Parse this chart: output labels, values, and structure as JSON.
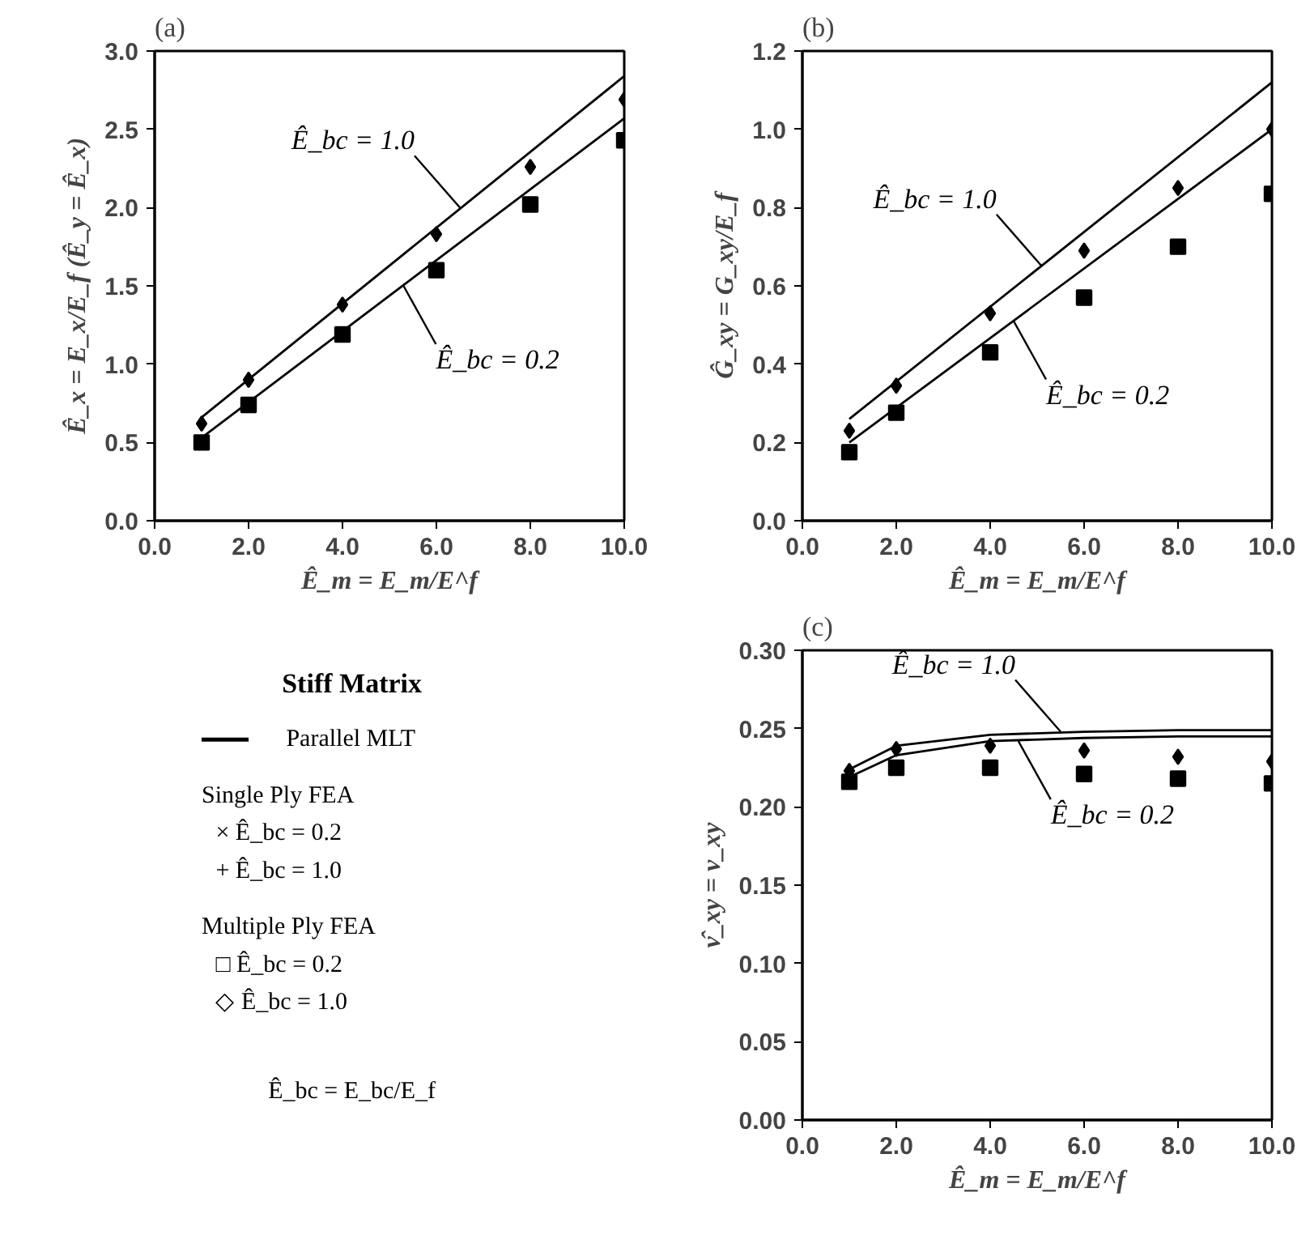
{
  "chart_data": [
    {
      "type": "scatter",
      "title": "(a)",
      "xlabel": "Ê_m = E_m/E^f",
      "ylabel": "Ê_x = E_x/E_f (Ê_y = Ê_x)",
      "x": [
        1,
        2,
        4,
        6,
        8,
        10
      ],
      "xlim": [
        0,
        10
      ],
      "ylim": [
        0,
        3
      ],
      "xticks": [
        {
          "value": 0,
          "label": "0.0"
        },
        {
          "value": 2,
          "label": "2.0"
        },
        {
          "value": 4,
          "label": "4.0"
        },
        {
          "value": 6,
          "label": "6.0"
        },
        {
          "value": 8,
          "label": "8.0"
        },
        {
          "value": 10,
          "label": "10.0"
        }
      ],
      "yticks": [
        {
          "value": 0,
          "label": "0.0"
        },
        {
          "value": 0.5,
          "label": "0.5"
        },
        {
          "value": 1,
          "label": "1.0"
        },
        {
          "value": 1.5,
          "label": "1.5"
        },
        {
          "value": 2,
          "label": "2.0"
        },
        {
          "value": 2.5,
          "label": "2.5"
        },
        {
          "value": 3,
          "label": "3.0"
        }
      ],
      "grid": false,
      "series": [
        {
          "type": "line",
          "x": [
            1,
            10
          ],
          "values": [
            0.66,
            2.84
          ],
          "color": "#000000",
          "marker": "none",
          "line_style": "solid"
        },
        {
          "type": "line",
          "x": [
            1,
            10
          ],
          "values": [
            0.53,
            2.57
          ],
          "color": "#000000",
          "marker": "none",
          "line_style": "solid"
        },
        {
          "type": "scatter",
          "values": [
            0.5,
            0.74,
            1.19,
            1.6,
            2.02,
            2.43
          ],
          "color": "#000000",
          "marker": "square"
        },
        {
          "type": "scatter",
          "values": [
            0.62,
            0.9,
            1.38,
            1.83,
            2.26,
            2.69
          ],
          "color": "#000000",
          "marker": "diamond"
        }
      ],
      "annotations": [
        {
          "text": "Ê_bc = 1.0",
          "x": 6.5,
          "y": 2.0
        },
        {
          "text": "Ê_bc = 0.2",
          "x": 5.3,
          "y": 1.5
        }
      ]
    },
    {
      "type": "scatter",
      "title": "(b)",
      "xlabel": "Ê_m = E_m/E^f",
      "ylabel": "Ĝ_xy = G_xy/E_f",
      "x": [
        1,
        2,
        4,
        6,
        8,
        10
      ],
      "xlim": [
        0,
        10
      ],
      "ylim": [
        0,
        1.2
      ],
      "xticks": [
        {
          "value": 0,
          "label": "0.0"
        },
        {
          "value": 2,
          "label": "2.0"
        },
        {
          "value": 4,
          "label": "4.0"
        },
        {
          "value": 6,
          "label": "6.0"
        },
        {
          "value": 8,
          "label": "8.0"
        },
        {
          "value": 10,
          "label": "10.0"
        }
      ],
      "yticks": [
        {
          "value": 0,
          "label": "0.0"
        },
        {
          "value": 0.2,
          "label": "0.2"
        },
        {
          "value": 0.4,
          "label": "0.4"
        },
        {
          "value": 0.6,
          "label": "0.6"
        },
        {
          "value": 0.8,
          "label": "0.8"
        },
        {
          "value": 1,
          "label": "1.0"
        },
        {
          "value": 1.2,
          "label": "1.2"
        }
      ],
      "grid": false,
      "series": [
        {
          "type": "line",
          "x": [
            1,
            10
          ],
          "values": [
            0.26,
            1.12
          ],
          "color": "#000000",
          "marker": "none",
          "line_style": "solid"
        },
        {
          "type": "line",
          "x": [
            1,
            10
          ],
          "values": [
            0.2,
            1.0
          ],
          "color": "#000000",
          "marker": "none",
          "line_style": "solid"
        },
        {
          "type": "scatter",
          "values": [
            0.175,
            0.276,
            0.43,
            0.57,
            0.7,
            0.835
          ],
          "color": "#000000",
          "marker": "square"
        },
        {
          "type": "scatter",
          "values": [
            0.23,
            0.345,
            0.53,
            0.69,
            0.85,
            1.0
          ],
          "color": "#000000",
          "marker": "diamond"
        }
      ],
      "annotations": [
        {
          "text": "Ê_bc = 1.0",
          "x": 5.1,
          "y": 0.65
        },
        {
          "text": "Ê_bc = 0.2",
          "x": 4.5,
          "y": 0.51
        }
      ]
    },
    {
      "type": "other",
      "title": "Stiff Matrix",
      "annotations": [
        "Parallel MLT",
        "Single Ply FEA",
        "×   Ê_bc = 0.2",
        "+   Ê_bc = 1.0",
        "Multiple Ply FEA",
        "□   Ê_bc = 0.2",
        "◇   Ê_bc = 1.0",
        "Ê_bc = E_bc/E_f"
      ]
    },
    {
      "type": "scatter",
      "title": "(c)",
      "xlabel": "Ê_m = E_m/E^f",
      "ylabel": "ν̂_xy = ν_xy",
      "x": [
        1,
        2,
        4,
        6,
        8,
        10
      ],
      "xlim": [
        0,
        10
      ],
      "ylim": [
        0,
        0.3
      ],
      "xticks": [
        {
          "value": 0,
          "label": "0.0"
        },
        {
          "value": 2,
          "label": "2.0"
        },
        {
          "value": 4,
          "label": "4.0"
        },
        {
          "value": 6,
          "label": "6.0"
        },
        {
          "value": 8,
          "label": "8.0"
        },
        {
          "value": 10,
          "label": "10.0"
        }
      ],
      "yticks": [
        {
          "value": 0,
          "label": "0.00"
        },
        {
          "value": 0.05,
          "label": "0.05"
        },
        {
          "value": 0.1,
          "label": "0.10"
        },
        {
          "value": 0.15,
          "label": "0.15"
        },
        {
          "value": 0.2,
          "label": "0.20"
        },
        {
          "value": 0.25,
          "label": "0.25"
        },
        {
          "value": 0.3,
          "label": "0.30"
        }
      ],
      "grid": false,
      "series": [
        {
          "type": "line",
          "x": [
            1,
            2,
            4,
            6,
            8,
            10
          ],
          "values": [
            0.224,
            0.239,
            0.246,
            0.248,
            0.249,
            0.249
          ],
          "color": "#000000",
          "marker": "none",
          "line_style": "solid"
        },
        {
          "type": "line",
          "x": [
            1,
            2,
            4,
            6,
            8,
            10
          ],
          "values": [
            0.219,
            0.233,
            0.242,
            0.244,
            0.245,
            0.245
          ],
          "color": "#000000",
          "marker": "none",
          "line_style": "solid"
        },
        {
          "type": "scatter",
          "values": [
            0.216,
            0.225,
            0.225,
            0.221,
            0.218,
            0.215
          ],
          "color": "#000000",
          "marker": "square"
        },
        {
          "type": "scatter",
          "values": [
            0.223,
            0.237,
            0.239,
            0.236,
            0.232,
            0.229
          ],
          "color": "#000000",
          "marker": "diamond"
        }
      ],
      "annotations": [
        {
          "text": "Ê_bc = 1.0",
          "x": 5.5,
          "y": 0.248
        },
        {
          "text": "Ê_bc = 0.2",
          "x": 4.6,
          "y": 0.242
        }
      ]
    }
  ]
}
